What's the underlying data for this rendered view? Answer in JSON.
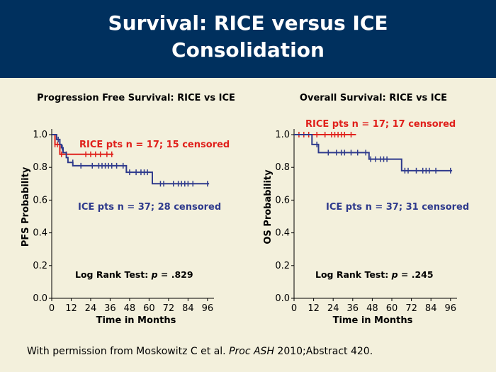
{
  "slide": {
    "title_line1": "Survival: RICE versus ICE",
    "title_line2": "Consolidation"
  },
  "footer": {
    "prefix": "With permission from Moskowitz C et al. ",
    "journal": "Proc ASH",
    "suffix": " 2010;Abstract 420."
  },
  "colors": {
    "banner": "#00305e",
    "background": "#f3f0dc",
    "rice": "#e0201b",
    "ice": "#2e3a8c"
  },
  "chart_data": [
    {
      "type": "line",
      "title": "Progression Free Survival: RICE vs ICE",
      "xlabel": "Time in Months",
      "ylabel": "PFS Probability",
      "xlim": [
        0,
        100
      ],
      "ylim": [
        0,
        1.0
      ],
      "xticks": [
        0,
        12,
        24,
        36,
        48,
        60,
        72,
        84,
        96
      ],
      "yticks": [
        "0.0",
        "0.2",
        "0.4",
        "0.6",
        "0.8",
        "1.0"
      ],
      "grid": false,
      "annotation_prefix": "Log Rank Test: ",
      "annotation_p": "p",
      "annotation_suffix": " = .829",
      "series": [
        {
          "name": "RICE pts n = 17; 15 censored",
          "color": "#e0201b",
          "steps": [
            [
              0,
              1.0
            ],
            [
              2,
              0.94
            ],
            [
              4,
              0.94
            ],
            [
              5,
              0.88
            ],
            [
              38,
              0.88
            ]
          ],
          "censored": [
            [
              2,
              0.94
            ],
            [
              3.5,
              0.94
            ],
            [
              6,
              0.88
            ],
            [
              9,
              0.88
            ],
            [
              21,
              0.88
            ],
            [
              24,
              0.88
            ],
            [
              27,
              0.88
            ],
            [
              30,
              0.88
            ],
            [
              34,
              0.88
            ],
            [
              37,
              0.88
            ]
          ]
        },
        {
          "name": "ICE pts n = 37; 28 censored",
          "color": "#2e3a8c",
          "steps": [
            [
              0,
              1.0
            ],
            [
              3,
              0.97
            ],
            [
              5,
              0.94
            ],
            [
              6,
              0.92
            ],
            [
              7,
              0.89
            ],
            [
              9,
              0.86
            ],
            [
              10,
              0.83
            ],
            [
              13,
              0.81
            ],
            [
              46,
              0.77
            ],
            [
              62,
              0.7
            ],
            [
              97,
              0.7
            ]
          ],
          "censored": [
            [
              4,
              0.97
            ],
            [
              6.5,
              0.92
            ],
            [
              13,
              0.83
            ],
            [
              18,
              0.81
            ],
            [
              25,
              0.81
            ],
            [
              29,
              0.81
            ],
            [
              31,
              0.81
            ],
            [
              33,
              0.81
            ],
            [
              35,
              0.81
            ],
            [
              37,
              0.81
            ],
            [
              40,
              0.81
            ],
            [
              44,
              0.81
            ],
            [
              48,
              0.77
            ],
            [
              52,
              0.77
            ],
            [
              55,
              0.77
            ],
            [
              57,
              0.77
            ],
            [
              59,
              0.77
            ],
            [
              67,
              0.7
            ],
            [
              69,
              0.7
            ],
            [
              75,
              0.7
            ],
            [
              78,
              0.7
            ],
            [
              80,
              0.7
            ],
            [
              82,
              0.7
            ],
            [
              84,
              0.7
            ],
            [
              87,
              0.7
            ],
            [
              96,
              0.7
            ]
          ]
        }
      ]
    },
    {
      "type": "line",
      "title": "Overall Survival: RICE vs ICE",
      "xlabel": "Time in Months",
      "ylabel": "OS Probability",
      "xlim": [
        0,
        100
      ],
      "ylim": [
        0,
        1.0
      ],
      "xticks": [
        0,
        12,
        24,
        36,
        48,
        60,
        72,
        84,
        96
      ],
      "yticks": [
        "0.0",
        "0.2",
        "0.4",
        "0.6",
        "0.8",
        "1.0"
      ],
      "grid": false,
      "annotation_prefix": "Log Rank Test: ",
      "annotation_p": "p",
      "annotation_suffix": " = .245",
      "series": [
        {
          "name": "RICE pts n = 17; 17 censored",
          "color": "#e0201b",
          "steps": [
            [
              0,
              1.0
            ],
            [
              38,
              1.0
            ]
          ],
          "censored": [
            [
              3,
              1.0
            ],
            [
              6,
              1.0
            ],
            [
              9,
              1.0
            ],
            [
              14,
              1.0
            ],
            [
              19,
              1.0
            ],
            [
              23,
              1.0
            ],
            [
              25,
              1.0
            ],
            [
              27,
              1.0
            ],
            [
              29,
              1.0
            ],
            [
              31,
              1.0
            ],
            [
              35,
              1.0
            ]
          ]
        },
        {
          "name": "ICE pts n = 37; 31 censored",
          "color": "#2e3a8c",
          "steps": [
            [
              0,
              1.0
            ],
            [
              11,
              0.94
            ],
            [
              15,
              0.89
            ],
            [
              42,
              0.89
            ],
            [
              46,
              0.85
            ],
            [
              57,
              0.85
            ],
            [
              66,
              0.78
            ],
            [
              97,
              0.78
            ]
          ],
          "censored": [
            [
              14,
              0.94
            ],
            [
              21,
              0.89
            ],
            [
              26,
              0.89
            ],
            [
              29,
              0.89
            ],
            [
              31,
              0.89
            ],
            [
              35,
              0.89
            ],
            [
              39,
              0.89
            ],
            [
              44,
              0.89
            ],
            [
              47,
              0.85
            ],
            [
              50,
              0.85
            ],
            [
              53,
              0.85
            ],
            [
              55,
              0.85
            ],
            [
              57,
              0.85
            ],
            [
              68,
              0.78
            ],
            [
              70,
              0.78
            ],
            [
              75,
              0.78
            ],
            [
              79,
              0.78
            ],
            [
              81,
              0.78
            ],
            [
              83,
              0.78
            ],
            [
              87,
              0.78
            ],
            [
              96,
              0.78
            ]
          ]
        }
      ]
    }
  ]
}
